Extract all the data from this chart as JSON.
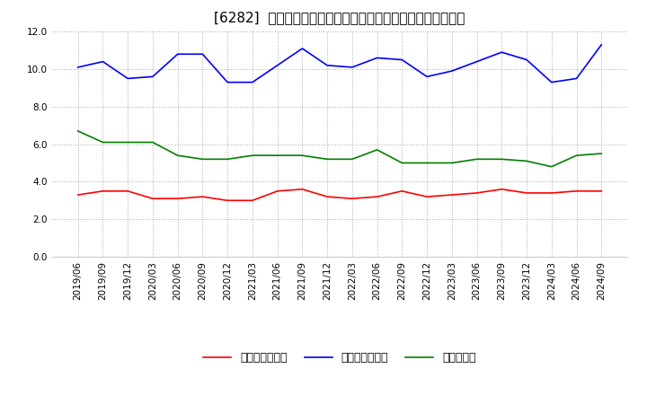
{
  "title": "[6282]  売上債権回転率、買入債務回転率、在庫回転率の推移",
  "x_labels": [
    "2019/06",
    "2019/09",
    "2019/12",
    "2020/03",
    "2020/06",
    "2020/09",
    "2020/12",
    "2021/03",
    "2021/06",
    "2021/09",
    "2021/12",
    "2022/03",
    "2022/06",
    "2022/09",
    "2022/12",
    "2023/03",
    "2023/06",
    "2023/09",
    "2023/12",
    "2024/03",
    "2024/06",
    "2024/09"
  ],
  "accounts_receivable_turnover": [
    3.3,
    3.5,
    3.5,
    3.1,
    3.1,
    3.2,
    3.0,
    3.0,
    3.5,
    3.6,
    3.2,
    3.1,
    3.2,
    3.5,
    3.2,
    3.3,
    3.4,
    3.6,
    3.4,
    3.4,
    3.5,
    3.5
  ],
  "accounts_payable_turnover": [
    10.1,
    10.4,
    9.5,
    9.6,
    10.8,
    10.8,
    9.3,
    9.3,
    10.2,
    11.1,
    10.2,
    10.1,
    10.6,
    10.5,
    9.6,
    9.9,
    10.4,
    10.9,
    10.5,
    9.3,
    9.5,
    11.3
  ],
  "inventory_turnover": [
    6.7,
    6.1,
    6.1,
    6.1,
    5.4,
    5.2,
    5.2,
    5.4,
    5.4,
    5.4,
    5.2,
    5.2,
    5.7,
    5.0,
    5.0,
    5.0,
    5.2,
    5.2,
    5.1,
    4.8,
    5.4,
    5.5
  ],
  "line_colors": {
    "accounts_receivable": "#ff0000",
    "accounts_payable": "#0000ff",
    "inventory": "#008000"
  },
  "legend_labels": {
    "accounts_receivable": "売上債権回転率",
    "accounts_payable": "買入債務回転率",
    "inventory": "在庫回転率"
  },
  "ylim": [
    0.0,
    12.0
  ],
  "yticks": [
    0.0,
    2.0,
    4.0,
    6.0,
    8.0,
    10.0,
    12.0
  ],
  "background_color": "#ffffff",
  "grid_color": "#aaaaaa",
  "title_fontsize": 11,
  "tick_fontsize": 7.5,
  "legend_fontsize": 9
}
